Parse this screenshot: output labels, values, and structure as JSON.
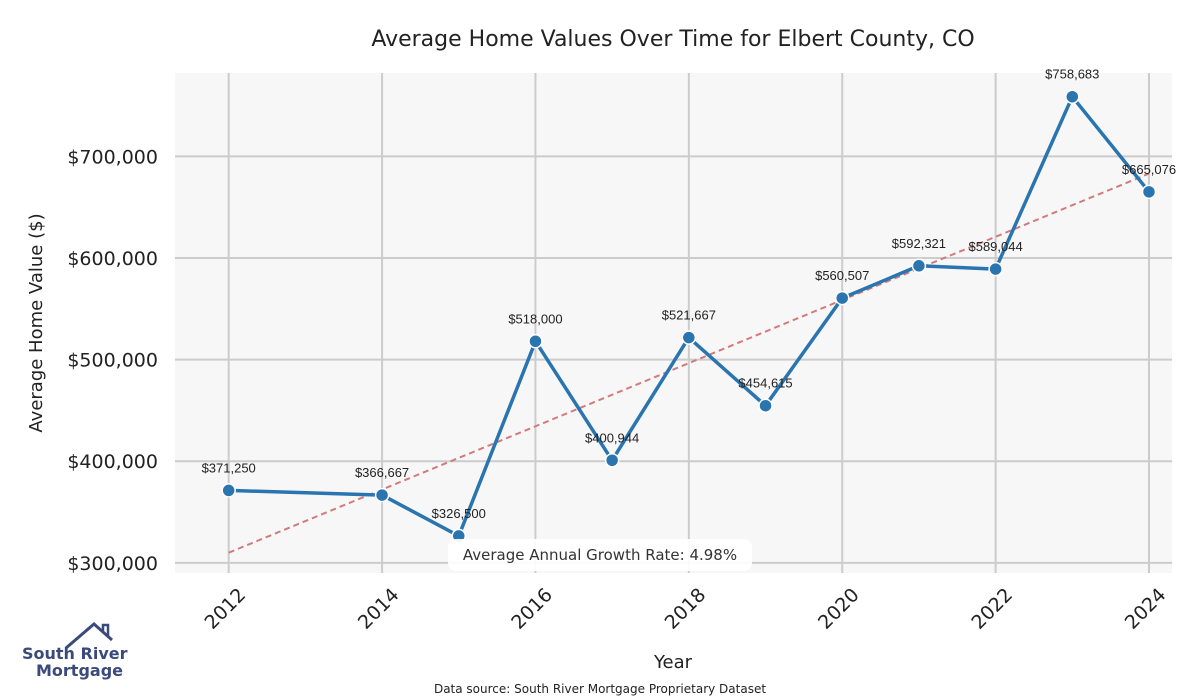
{
  "chart_data": {
    "type": "line",
    "title": "Average Home Values Over Time for Elbert County, CO",
    "xlabel": "Year",
    "ylabel": "Average Home Value ($)",
    "x": [
      2012,
      2014,
      2015,
      2016,
      2017,
      2018,
      2019,
      2020,
      2021,
      2022,
      2023,
      2024
    ],
    "series": [
      {
        "values": [
          371250,
          366667,
          326500,
          518000,
          400944,
          521667,
          454615,
          560507,
          592321,
          589044,
          758683,
          665076
        ],
        "labels": [
          "$371,250",
          "$366,667",
          "$326,500",
          "$518,000",
          "$400,944",
          "$521,667",
          "$454,615",
          "$560,507",
          "$592,321",
          "$589,044",
          "$758,683",
          "$665,076"
        ],
        "color": "#2a75b0"
      }
    ],
    "trendline": {
      "style": "dashed",
      "color": "#d27b7b",
      "start": [
        2012,
        310000
      ],
      "end": [
        2024,
        683000
      ]
    },
    "xticks": [
      2012,
      2014,
      2016,
      2018,
      2020,
      2022,
      2024
    ],
    "xtick_labels": [
      "2012",
      "2014",
      "2016",
      "2018",
      "2020",
      "2022",
      "2024"
    ],
    "yticks": [
      300000,
      400000,
      500000,
      600000,
      700000
    ],
    "ytick_labels": [
      "$300,000",
      "$400,000",
      "$500,000",
      "$600,000",
      "$700,000"
    ],
    "xlim": [
      2011.3,
      2024.3
    ],
    "ylim": [
      290000,
      782000
    ],
    "grid": true,
    "background_color": "#f7f7f7",
    "annotation": "Average Annual Growth Rate: 4.98%"
  },
  "logo": {
    "line1": "South River",
    "line2": "Mortgage"
  },
  "source_note": "Data source: South River Mortgage Proprietary Dataset"
}
